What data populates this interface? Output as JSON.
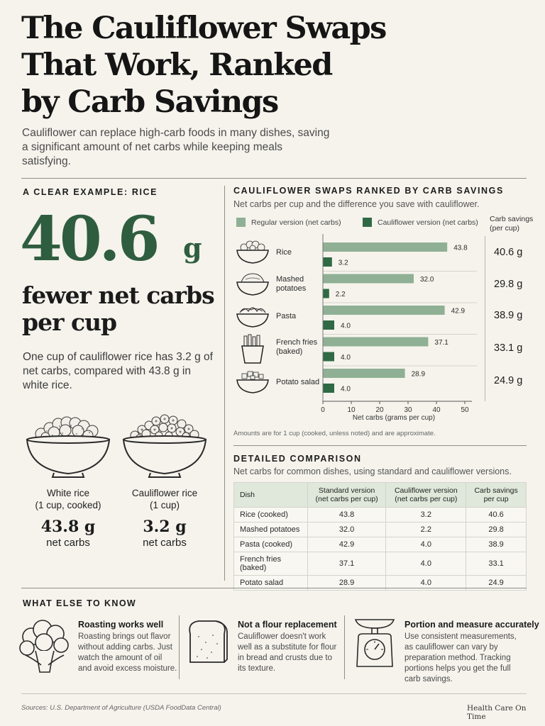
{
  "header": {
    "title_line1": "The Cauliflower Swaps",
    "title_line2": "That Work, Ranked",
    "title_line3": "by Carb Savings",
    "subtitle": "Cauliflower can replace high-carb foods in many dishes, saving a significant amount of net carbs while keeping meals satisfying."
  },
  "example": {
    "label": "A CLEAR EXAMPLE: RICE",
    "big_number": "40.6",
    "big_unit": "g",
    "caption_line1": "fewer net carbs",
    "caption_line2": "per cup",
    "explanation": "One cup of cauliflower rice has 3.2 g of net carbs, compared with 43.8 g in white rice.",
    "bowls": [
      {
        "name_line1": "White rice",
        "name_line2": "(1 cup, cooked)",
        "value": "43.8 g",
        "unit": "net carbs",
        "icon": "rice-bowl-icon"
      },
      {
        "name_line1": "Cauliflower rice",
        "name_line2": "(1 cup)",
        "value": "3.2 g",
        "unit": "net carbs",
        "icon": "cauliflower-rice-bowl-icon"
      }
    ]
  },
  "chart_section": {
    "title": "CAULIFLOWER SWAPS RANKED BY CARB SAVINGS",
    "subtitle": "Net carbs per cup and the difference you save with cauliflower.",
    "savings_header_line1": "Carb savings",
    "savings_header_line2": "(per cup)",
    "note": "Amounts are for 1 cup (cooked, unless noted) and are approximate."
  },
  "chart_data": {
    "type": "bar",
    "orientation": "horizontal",
    "categories": [
      "Rice",
      "Mashed potatoes",
      "Pasta",
      "French fries (baked)",
      "Potato salad"
    ],
    "category_lines": [
      [
        "Rice"
      ],
      [
        "Mashed",
        "potatoes"
      ],
      [
        "Pasta"
      ],
      [
        "French fries",
        "(baked)"
      ],
      [
        "Potato salad"
      ]
    ],
    "category_icons": [
      "rice-icon",
      "mashed-potatoes-icon",
      "pasta-icon",
      "french-fries-icon",
      "potato-salad-icon"
    ],
    "series": [
      {
        "name": "Regular version (net carbs)",
        "values": [
          43.8,
          32.0,
          42.9,
          37.1,
          28.9
        ],
        "color": "#8fb095"
      },
      {
        "name": "Cauliflower version (net carbs)",
        "values": [
          3.2,
          2.2,
          4.0,
          4.0,
          4.0
        ],
        "color": "#2f6a45"
      }
    ],
    "value_labels": [
      [
        "43.8",
        "32.0",
        "42.9",
        "37.1",
        "28.9"
      ],
      [
        "3.2",
        "2.2",
        "4.0",
        "4.0",
        "4.0"
      ]
    ],
    "savings": [
      "40.6 g",
      "29.8 g",
      "38.9 g",
      "33.1 g",
      "24.9 g"
    ],
    "xlabel": "Net carbs (grams per cup)",
    "xlim": [
      0,
      50
    ],
    "xticks": [
      0,
      10,
      20,
      30,
      40,
      50
    ],
    "grid": false,
    "legend_placement": "top"
  },
  "table": {
    "title": "DETAILED COMPARISON",
    "subtitle": "Net carbs for common dishes, using standard and cauliflower versions.",
    "headers": [
      {
        "line1": "Dish",
        "line2": ""
      },
      {
        "line1": "Standard version",
        "line2": "(net carbs per cup)"
      },
      {
        "line1": "Cauliflower version",
        "line2": "(net carbs per cup)"
      },
      {
        "line1": "Carb savings",
        "line2": "per cup"
      }
    ],
    "rows": [
      [
        "Rice (cooked)",
        "43.8",
        "3.2",
        "40.6"
      ],
      [
        "Mashed potatoes",
        "32.0",
        "2.2",
        "29.8"
      ],
      [
        "Pasta (cooked)",
        "42.9",
        "4.0",
        "38.9"
      ],
      [
        "French fries (baked)",
        "37.1",
        "4.0",
        "33.1"
      ],
      [
        "Potato salad",
        "28.9",
        "4.0",
        "24.9"
      ]
    ]
  },
  "know": {
    "title": "WHAT ELSE TO KNOW",
    "tips": [
      {
        "heading": "Roasting works well",
        "body": "Roasting brings out flavor without adding carbs. Just watch the amount of oil and avoid excess moisture.",
        "icon": "cauliflower-icon"
      },
      {
        "heading": "Not a flour replacement",
        "body": "Cauliflower doesn't work well as a substitute for flour in bread and crusts due to its texture.",
        "icon": "bread-icon"
      },
      {
        "heading": "Portion and measure accurately",
        "body": "Use consistent measurements, as cauliflower can vary by preparation method. Tracking portions helps you get the full carb savings.",
        "icon": "scale-icon"
      }
    ]
  },
  "footer": {
    "source": "Sources: U.S. Department of Agriculture (USDA FoodData Central)",
    "brand": "Health Care On Time"
  },
  "colors": {
    "background": "#f5f3ec",
    "accent_green": "#2f5d3f",
    "bar_light": "#8fb095",
    "bar_dark": "#2f6a45",
    "table_header": "#dfe8da"
  }
}
